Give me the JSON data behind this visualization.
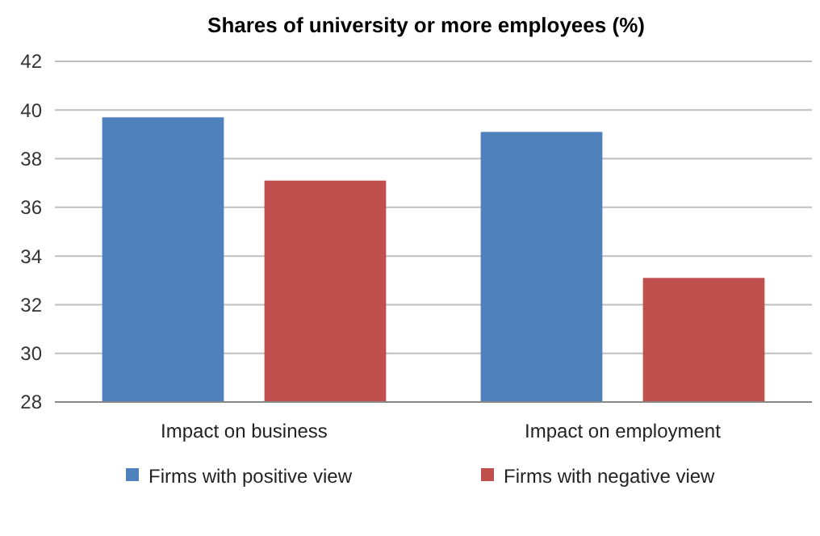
{
  "chart_data": {
    "type": "bar",
    "title": "Shares of university or more employees (%)",
    "categories": [
      "Impact on business",
      "Impact on employment"
    ],
    "series": [
      {
        "name": "Firms with positive view",
        "color": "#4f81bd",
        "values": [
          39.7,
          39.1
        ]
      },
      {
        "name": "Firms with negative view",
        "color": "#c0504d",
        "values": [
          37.1,
          33.1
        ]
      }
    ],
    "ylim": [
      28,
      42
    ],
    "yticks": [
      28,
      30,
      32,
      34,
      36,
      38,
      40,
      42
    ],
    "grid": "y",
    "legend": "bottom"
  }
}
